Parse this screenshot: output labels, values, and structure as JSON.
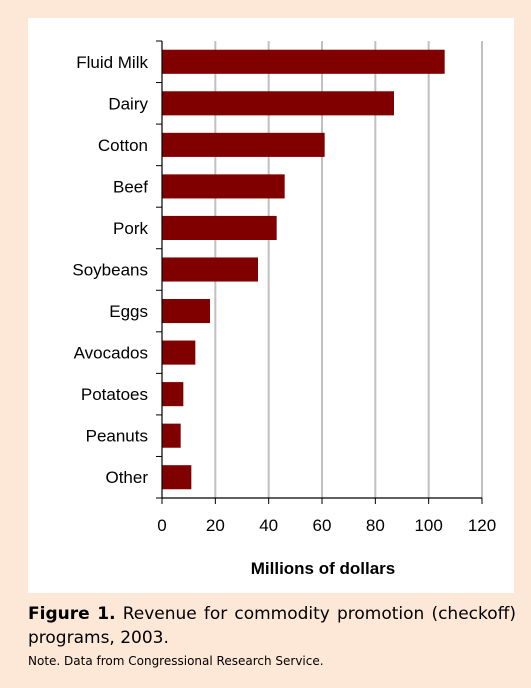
{
  "figure": {
    "label": "Figure 1.",
    "caption": "Revenue for commodity promotion (checkoff) programs, 2003.",
    "note": "Note. Data from Congressional Research Service."
  },
  "colors": {
    "background": "#fde8d8",
    "panel": "#ffffff",
    "bar": "#800000",
    "grid": "#c0c0c0"
  },
  "chart_data": {
    "type": "bar",
    "orientation": "horizontal",
    "title": "",
    "xlabel": "Millions of dollars",
    "ylabel": "",
    "categories": [
      "Fluid Milk",
      "Dairy",
      "Cotton",
      "Beef",
      "Pork",
      "Soybeans",
      "Eggs",
      "Avocados",
      "Potatoes",
      "Peanuts",
      "Other"
    ],
    "values": [
      106,
      87,
      61,
      46,
      43,
      36,
      18,
      12.5,
      8,
      7,
      11
    ],
    "xlim": [
      0,
      120
    ],
    "xticks": [
      0,
      20,
      40,
      60,
      80,
      100,
      120
    ],
    "grid": "vertical",
    "legend": "none"
  }
}
